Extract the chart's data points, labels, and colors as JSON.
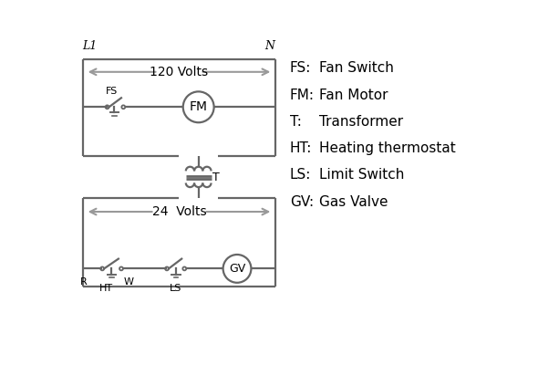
{
  "bg_color": "#ffffff",
  "line_color": "#666666",
  "text_color": "#000000",
  "legend_items": [
    [
      "FS:",
      "Fan Switch"
    ],
    [
      "FM:",
      "Fan Motor"
    ],
    [
      "T:",
      "Transformer"
    ],
    [
      "HT:",
      "Heating thermostat"
    ],
    [
      "LS:",
      "Limit Switch"
    ],
    [
      "GV:",
      "Gas Valve"
    ]
  ],
  "L1_label": "L1",
  "N_label": "N",
  "volts120_label": "120 Volts",
  "volts24_label": "24  Volts",
  "T_label": "T",
  "FS_label": "FS",
  "FM_label": "FM",
  "R_label": "R",
  "W_label": "W",
  "HT_label": "HT",
  "LS_label": "LS",
  "GV_label": "GV",
  "arrow_color": "#999999"
}
